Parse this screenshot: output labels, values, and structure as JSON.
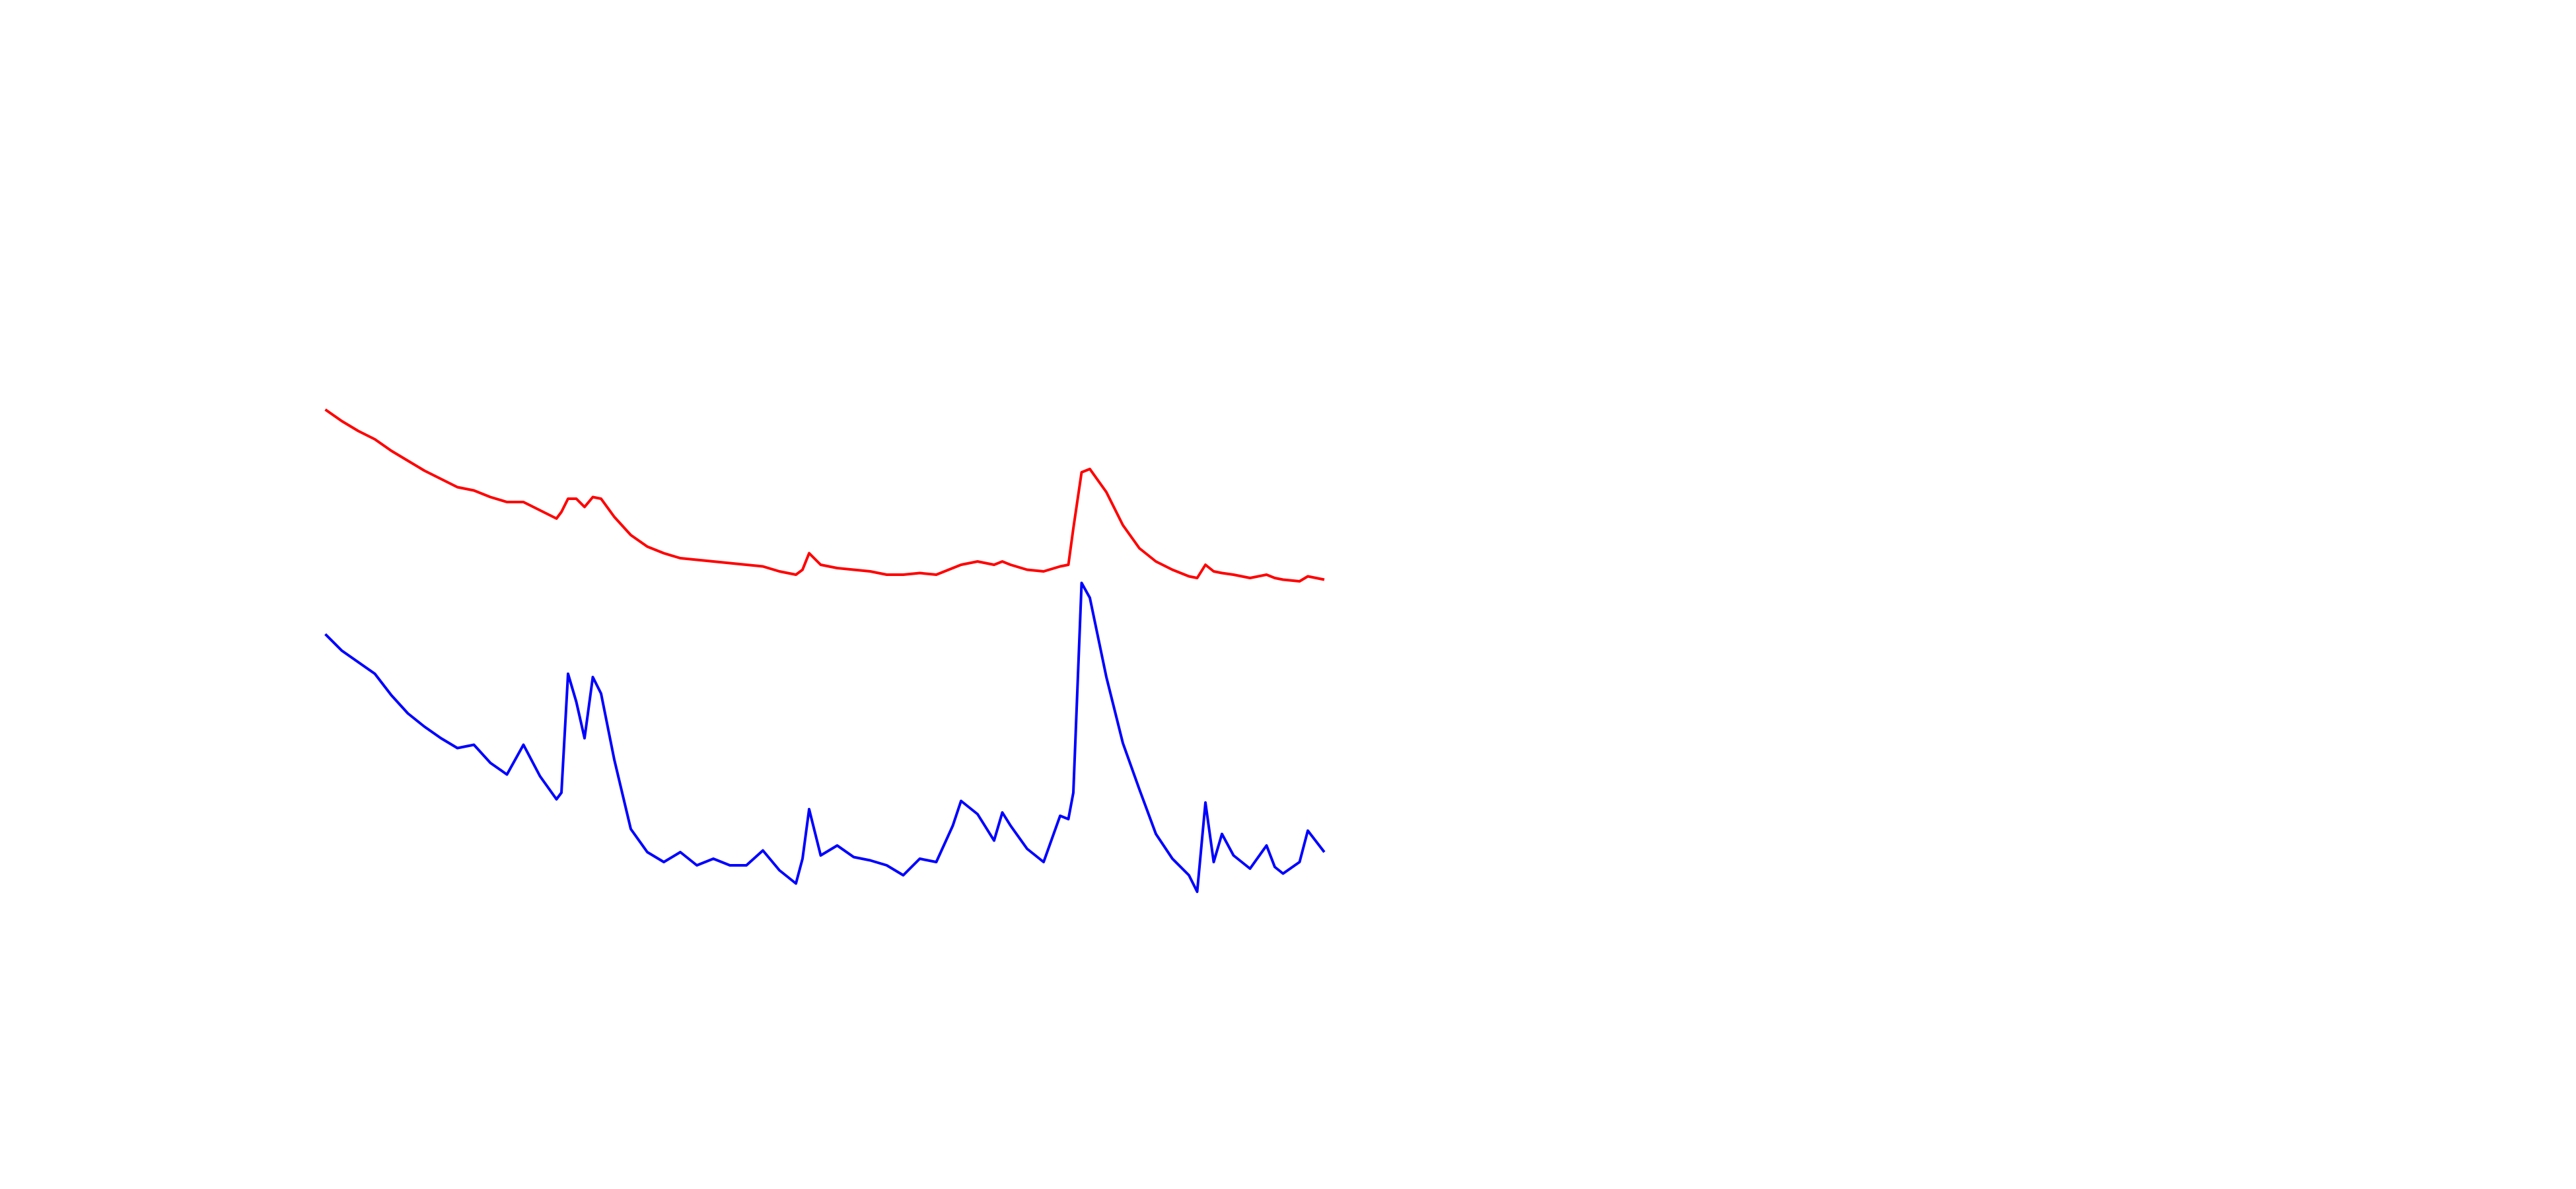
{
  "chart_data": {
    "type": "line",
    "x": [
      0,
      10,
      20,
      30,
      40,
      50,
      60,
      70,
      80,
      90,
      100,
      110,
      120,
      130,
      140,
      143,
      147,
      152,
      157,
      162,
      167,
      175,
      185,
      195,
      205,
      215,
      225,
      235,
      245,
      255,
      265,
      275,
      285,
      289,
      293,
      300,
      310,
      320,
      330,
      340,
      350,
      360,
      370,
      380,
      385,
      395,
      405,
      410,
      415,
      425,
      435,
      445,
      450,
      453,
      458,
      463,
      473,
      483,
      493,
      503,
      513,
      523,
      528,
      533,
      538,
      543,
      550,
      560,
      570,
      575,
      580,
      590,
      595,
      605
    ],
    "xlim": [
      0,
      605
    ],
    "ylim": [
      0,
      400
    ],
    "series": [
      {
        "color": "#ff0000",
        "values": [
          312,
          305,
          299,
          294,
          287,
          281,
          275,
          270,
          265,
          263,
          259,
          256,
          256,
          251,
          246,
          250,
          258,
          258,
          253,
          259,
          258,
          247,
          236,
          229,
          225,
          222,
          221,
          220,
          219,
          218,
          217,
          214,
          212,
          215,
          225,
          218,
          216,
          215,
          214,
          212,
          212,
          213,
          212,
          216,
          218,
          220,
          218,
          220,
          218,
          215,
          214,
          217,
          218,
          240,
          274,
          276,
          262,
          242,
          228,
          220,
          215,
          211,
          210,
          218,
          214,
          213,
          212,
          210,
          212,
          210,
          209,
          208,
          211,
          209
        ]
      },
      {
        "color": "#0000ff",
        "values": [
          176,
          166,
          159,
          152,
          139,
          128,
          120,
          113,
          107,
          109,
          98,
          91,
          109,
          90,
          76,
          80,
          152,
          135,
          113,
          150,
          140,
          100,
          58,
          44,
          38,
          44,
          36,
          40,
          36,
          36,
          45,
          33,
          25,
          40,
          70,
          42,
          48,
          41,
          39,
          36,
          30,
          40,
          38,
          60,
          75,
          67,
          51,
          68,
          60,
          46,
          38,
          66,
          64,
          80,
          207,
          198,
          150,
          110,
          82,
          55,
          40,
          30,
          20,
          74,
          38,
          55,
          42,
          34,
          48,
          35,
          31,
          38,
          57,
          44
        ]
      }
    ]
  }
}
